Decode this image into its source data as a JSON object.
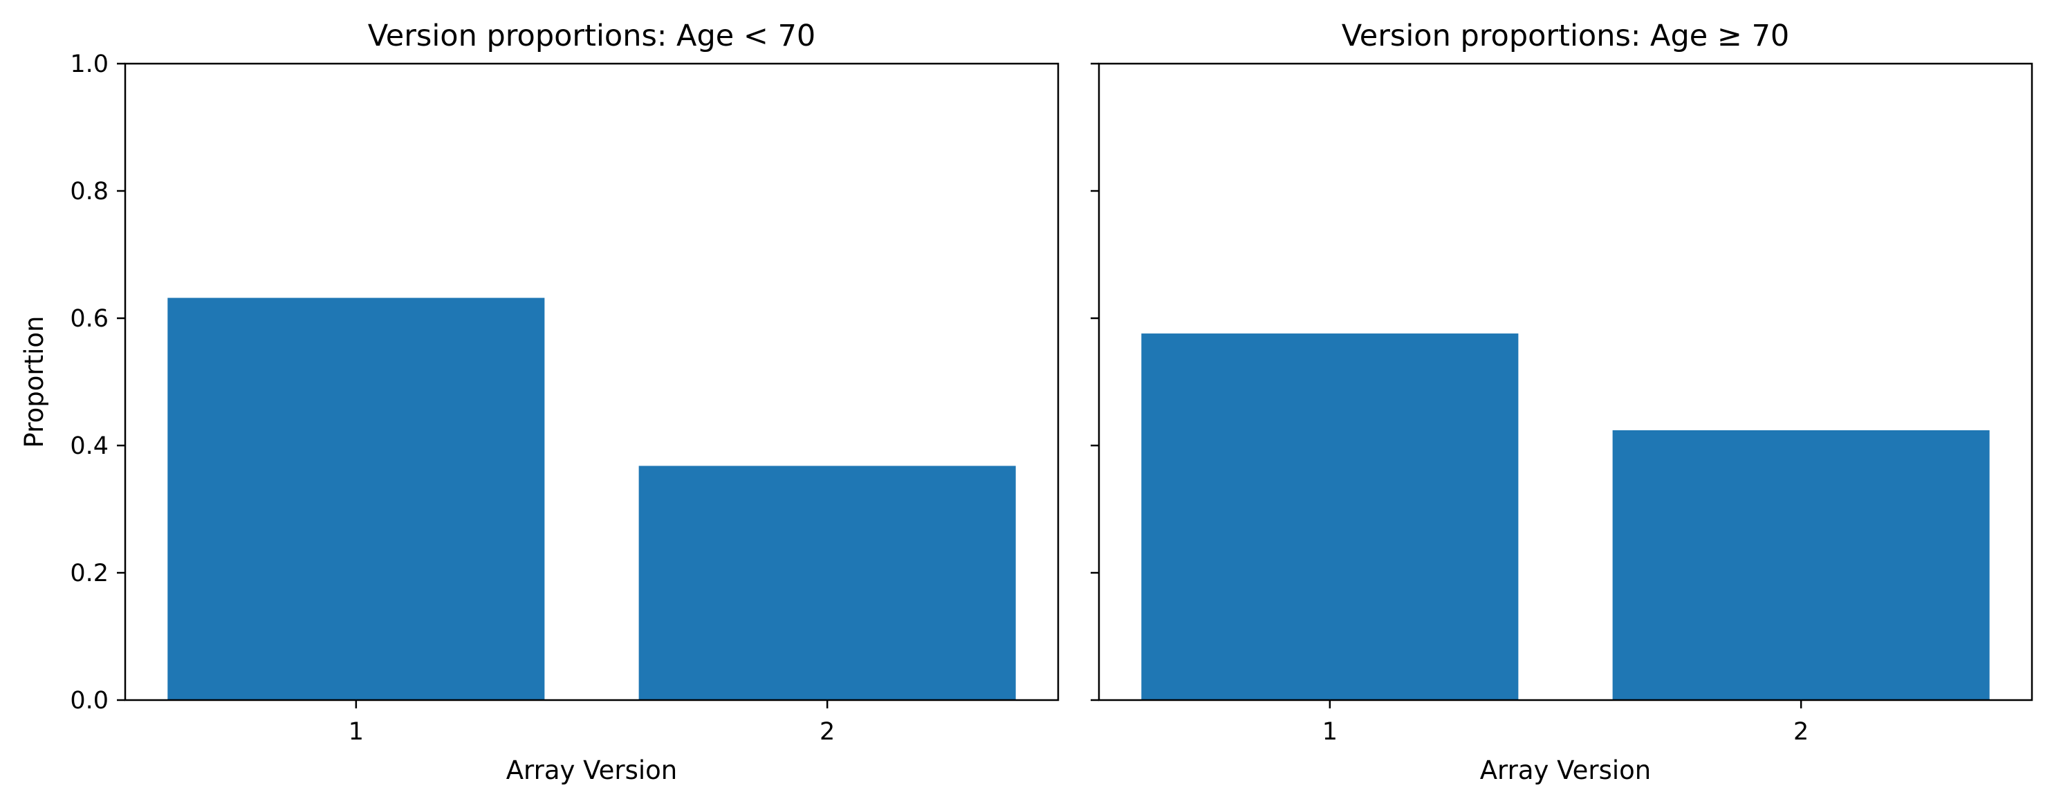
{
  "chart_data": [
    {
      "type": "bar",
      "title": "Version proportions: Age < 70",
      "xlabel": "Array Version",
      "ylabel": "Proportion",
      "categories": [
        "1",
        "2"
      ],
      "values": [
        0.632,
        0.368
      ],
      "ylim": [
        0,
        1.0
      ],
      "yticks": [
        "0.0",
        "0.2",
        "0.4",
        "0.6",
        "0.8",
        "1.0"
      ],
      "bar_color": "#1f77b4",
      "grid": false
    },
    {
      "type": "bar",
      "title": "Version proportions: Age ≥ 70",
      "xlabel": "Array Version",
      "ylabel": "",
      "categories": [
        "1",
        "2"
      ],
      "values": [
        0.576,
        0.424
      ],
      "ylim": [
        0,
        1.0
      ],
      "yticks": [],
      "bar_color": "#1f77b4",
      "grid": false
    }
  ]
}
